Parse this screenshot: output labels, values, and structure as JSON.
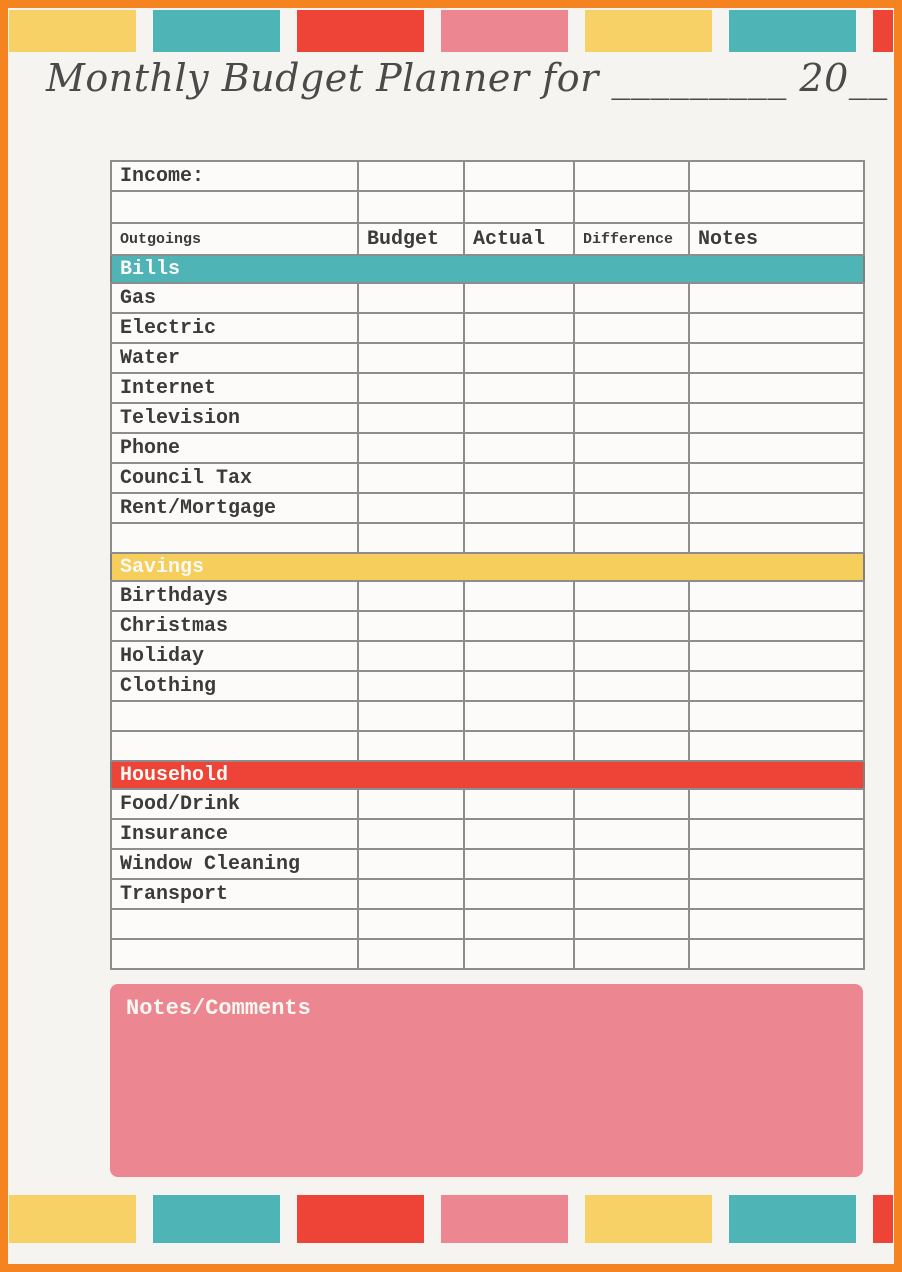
{
  "title": {
    "text": "Monthly Budget Planner for _________ 20__"
  },
  "palette": {
    "yellow": "#f8d166",
    "teal": "#4fb4b5",
    "red": "#ee4437",
    "pink": "#ec8791",
    "orange_border": "#f5831f",
    "page_background": "#f6f4f1",
    "table_line": "#8d8d8d",
    "text": "#3b3b3b"
  },
  "decor": {
    "top_blocks": [
      "yellow",
      "teal",
      "red",
      "pink",
      "yellow",
      "teal",
      "red"
    ],
    "bottom_blocks": [
      "yellow",
      "teal",
      "red",
      "pink",
      "yellow",
      "teal",
      "red"
    ]
  },
  "income_table": {
    "columns": 5,
    "rows": [
      {
        "label": "Income:"
      },
      {
        "label": ""
      }
    ]
  },
  "budget_table": {
    "headers": [
      "Outgoings",
      "Budget",
      "Actual",
      "Difference",
      "Notes"
    ],
    "sections": [
      {
        "name": "Bills",
        "color": "#4fb4b5",
        "items": [
          "Gas",
          "Electric",
          "Water",
          "Internet",
          "Television",
          "Phone",
          "Council Tax",
          "Rent/Mortgage"
        ],
        "empty_rows": 1
      },
      {
        "name": "Savings",
        "color": "#f6ce5c",
        "items": [
          "Birthdays",
          "Christmas",
          "Holiday",
          "Clothing"
        ],
        "empty_rows": 2
      },
      {
        "name": "Household",
        "color": "#ee4437",
        "items": [
          "Food/Drink",
          "Insurance",
          "Window Cleaning",
          "Transport"
        ],
        "empty_rows": 2
      }
    ]
  },
  "notes_box": {
    "label": "Notes/Comments",
    "color": "#ec8791"
  }
}
